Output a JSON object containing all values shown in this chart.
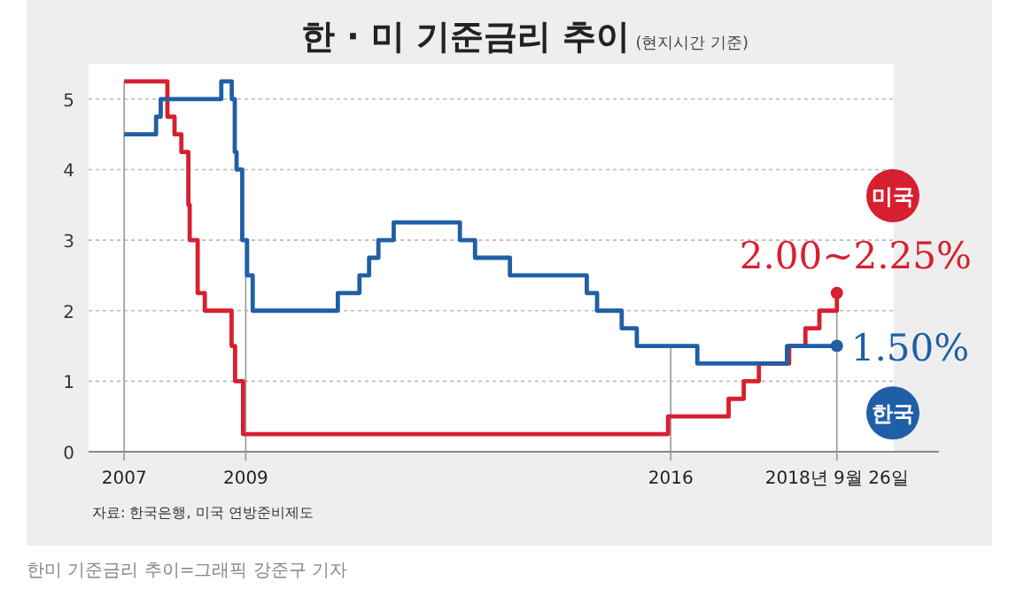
{
  "chart_data": {
    "type": "step",
    "title": "한 · 미 기준금리 추이",
    "subtitle": "(현지시간 기준)",
    "xlim": [
      "2006-06-01",
      "2020-06-01"
    ],
    "xticks": [
      {
        "value": "2007-01-01",
        "label": "2007"
      },
      {
        "value": "2009-01-01",
        "label": "2009"
      },
      {
        "value": "2016-01-01",
        "label": "2016"
      },
      {
        "value": "2018-09-26",
        "label": "2018년 9월 26일"
      }
    ],
    "ref_lines": [
      {
        "axis": "x",
        "value": "2007-01-01",
        "color": "#999999"
      },
      {
        "axis": "x",
        "value": "2009-01-01",
        "color": "#999999"
      },
      {
        "axis": "x",
        "value": "2016-01-01",
        "color": "#999999"
      },
      {
        "axis": "x",
        "value": "2018-09-26",
        "color": "#999999"
      }
    ],
    "ylim": [
      0,
      5.5
    ],
    "yticks": [
      0,
      1,
      2,
      3,
      4,
      5
    ],
    "grid": "y",
    "series": [
      {
        "name": "미국",
        "color": "#d7202f",
        "x": [
          "2007-01-01",
          "2007-09-18",
          "2007-10-31",
          "2007-12-11",
          "2008-01-22",
          "2008-01-30",
          "2008-03-18",
          "2008-04-30",
          "2008-10-08",
          "2008-10-29",
          "2008-12-16",
          "2015-12-16",
          "2016-12-14",
          "2017-03-15",
          "2017-06-14",
          "2017-12-13",
          "2018-03-21",
          "2018-06-13",
          "2018-09-26"
        ],
        "values": [
          5.25,
          4.75,
          4.5,
          4.25,
          3.5,
          3,
          2.25,
          2,
          1.5,
          1,
          0.25,
          0.5,
          0.75,
          1,
          1.25,
          1.5,
          1.75,
          2,
          2.25
        ]
      },
      {
        "name": "한국",
        "color": "#1f5fa5",
        "x": [
          "2007-01-01",
          "2007-07-12",
          "2007-08-09",
          "2008-08-07",
          "2008-10-09",
          "2008-10-27",
          "2008-11-07",
          "2008-12-11",
          "2009-01-09",
          "2009-02-12",
          "2010-07-09",
          "2010-11-16",
          "2011-01-13",
          "2011-03-10",
          "2011-06-10",
          "2012-07-12",
          "2012-10-11",
          "2013-05-09",
          "2014-08-14",
          "2014-10-15",
          "2015-03-12",
          "2015-06-11",
          "2016-06-09",
          "2017-11-30",
          "2018-09-26"
        ],
        "values": [
          4.5,
          4.75,
          5,
          5.25,
          5,
          4.25,
          4,
          3,
          2.5,
          2,
          2.25,
          2.5,
          2.75,
          3,
          3.25,
          3,
          2.75,
          2.5,
          2.25,
          2,
          1.75,
          1.5,
          1.25,
          1.5,
          1.5
        ]
      }
    ],
    "annotations": [
      {
        "text": "2.00~2.25%",
        "x": "2018-09-26",
        "y": 2.25
      },
      {
        "text": "1.50%",
        "x": "2018-09-26",
        "y": 1.5
      },
      "자료: 한국은행, 미국 연방준비제도",
      "한미 기준금리 추이=그래픽 강준구 기자"
    ]
  }
}
